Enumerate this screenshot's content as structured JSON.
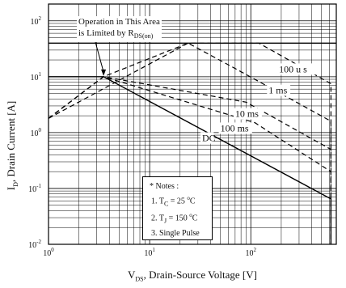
{
  "chart_data": {
    "type": "line",
    "x_scale": "log",
    "y_scale": "log",
    "xlim": [
      1,
      700
    ],
    "ylim": [
      0.01,
      200
    ],
    "x_ticks": [
      {
        "value": 1,
        "base": "10",
        "exp": "0"
      },
      {
        "value": 10,
        "base": "10",
        "exp": "1"
      },
      {
        "value": 100,
        "base": "10",
        "exp": "2"
      }
    ],
    "y_ticks": [
      {
        "value": 100,
        "base": "10",
        "exp": "2"
      },
      {
        "value": 10,
        "base": "10",
        "exp": "1"
      },
      {
        "value": 1,
        "base": "10",
        "exp": "0"
      },
      {
        "value": 0.1,
        "base": "10",
        "exp": "-1"
      },
      {
        "value": 0.01,
        "base": "10",
        "exp": "-2"
      }
    ],
    "ylabel": {
      "main": "I",
      "sub": "D",
      "rest": ", Drain Current [A]"
    },
    "xlabel": {
      "main": "V",
      "sub": "DS",
      "rest": ", Drain-Source Voltage [V]"
    },
    "grid": true,
    "series": [
      {
        "name": "100 us",
        "style": "dashed",
        "points": [
          [
            1,
            1.8
          ],
          [
            24,
            40
          ],
          [
            120,
            40
          ],
          [
            620,
            7.5
          ],
          [
            620,
            0.01
          ]
        ]
      },
      {
        "name": "1 ms",
        "style": "dashed",
        "points": [
          [
            1,
            1.8
          ],
          [
            3.5,
            10
          ],
          [
            24,
            40
          ],
          [
            70,
            14
          ],
          [
            620,
            1.6
          ],
          [
            620,
            0.01
          ]
        ]
      },
      {
        "name": "10 ms",
        "style": "dashed",
        "points": [
          [
            1,
            1.8
          ],
          [
            3.5,
            10
          ],
          [
            90,
            3.5
          ],
          [
            620,
            0.5
          ],
          [
            620,
            0.01
          ]
        ]
      },
      {
        "name": "100 ms",
        "style": "dashed",
        "points": [
          [
            1,
            1.8
          ],
          [
            3.5,
            10
          ],
          [
            110,
            1.5
          ],
          [
            620,
            0.2
          ],
          [
            620,
            0.01
          ]
        ]
      },
      {
        "name": "DC",
        "style": "solid",
        "points": [
          [
            1,
            10
          ],
          [
            3.5,
            10
          ],
          [
            620,
            0.065
          ],
          [
            620,
            0.01
          ]
        ]
      },
      {
        "name": "",
        "style": "solid",
        "points": [
          [
            1,
            40
          ],
          [
            700,
            40
          ]
        ]
      }
    ],
    "curve_labels": [
      {
        "text": "100 u s",
        "x": 190,
        "y": 12
      },
      {
        "text": "1 ms",
        "x": 150,
        "y": 5
      },
      {
        "text": "10 ms",
        "x": 70,
        "y": 1.9
      },
      {
        "text": "100 ms",
        "x": 50,
        "y": 1.05
      },
      {
        "text": "DC",
        "x": 33,
        "y": 0.7
      }
    ],
    "annotations": {
      "rds_line1": "Operation in This Area",
      "rds_line2": "is Limited by R",
      "rds_sub": "DS(on)",
      "notes_title": "* Notes :",
      "note1_pre": "1. T",
      "note1_sub": "C",
      "note1_mid": " = 25 ",
      "note1_deg": "o",
      "note1_unit": "C",
      "note2_pre": "2. T",
      "note2_sub": "J",
      "note2_mid": " = 150 ",
      "note2_deg": "o",
      "note2_unit": "C",
      "note3": "3. Single Pulse"
    }
  }
}
